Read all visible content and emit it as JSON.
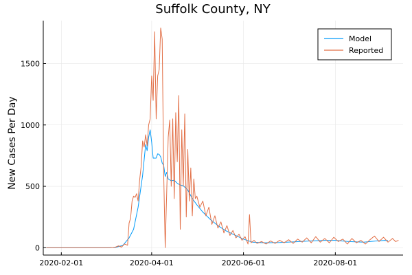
{
  "chart_data": {
    "type": "line",
    "title": "Suffolk County, NY",
    "xlabel": "",
    "ylabel": "New Cases Per Day",
    "x_ticks": [
      "2020-02-01",
      "2020-04-01",
      "2020-06-01",
      "2020-08-01"
    ],
    "y_ticks": [
      0,
      500,
      1000,
      1500
    ],
    "xlim": [
      "2020-01-20",
      "2020-09-15"
    ],
    "ylim": [
      -60,
      1850
    ],
    "grid": true,
    "legend_position": "top-right",
    "series": [
      {
        "name": "Model",
        "color": "#009af9",
        "points": [
          [
            "2020-01-22",
            0
          ],
          [
            "2020-02-15",
            0
          ],
          [
            "2020-03-01",
            0
          ],
          [
            "2020-03-08",
            2
          ],
          [
            "2020-03-13",
            20
          ],
          [
            "2020-03-17",
            80
          ],
          [
            "2020-03-20",
            150
          ],
          [
            "2020-03-23",
            330
          ],
          [
            "2020-03-26",
            590
          ],
          [
            "2020-03-28",
            840
          ],
          [
            "2020-03-29",
            790
          ],
          [
            "2020-03-30",
            900
          ],
          [
            "2020-03-31",
            960
          ],
          [
            "2020-04-01",
            860
          ],
          [
            "2020-04-02",
            730
          ],
          [
            "2020-04-04",
            730
          ],
          [
            "2020-04-05",
            765
          ],
          [
            "2020-04-06",
            760
          ],
          [
            "2020-04-07",
            740
          ],
          [
            "2020-04-08",
            690
          ],
          [
            "2020-04-09",
            670
          ],
          [
            "2020-04-10",
            580
          ],
          [
            "2020-04-11",
            615
          ],
          [
            "2020-04-12",
            560
          ],
          [
            "2020-04-14",
            545
          ],
          [
            "2020-04-16",
            550
          ],
          [
            "2020-04-18",
            525
          ],
          [
            "2020-04-20",
            510
          ],
          [
            "2020-04-22",
            505
          ],
          [
            "2020-04-25",
            470
          ],
          [
            "2020-04-28",
            400
          ],
          [
            "2020-05-01",
            350
          ],
          [
            "2020-05-05",
            290
          ],
          [
            "2020-05-10",
            230
          ],
          [
            "2020-05-15",
            180
          ],
          [
            "2020-05-20",
            140
          ],
          [
            "2020-05-25",
            110
          ],
          [
            "2020-06-01",
            70
          ],
          [
            "2020-06-07",
            45
          ],
          [
            "2020-06-15",
            40
          ],
          [
            "2020-06-25",
            42
          ],
          [
            "2020-07-05",
            48
          ],
          [
            "2020-07-15",
            55
          ],
          [
            "2020-07-25",
            60
          ],
          [
            "2020-08-01",
            60
          ],
          [
            "2020-08-10",
            50
          ],
          [
            "2020-08-20",
            45
          ],
          [
            "2020-08-28",
            55
          ],
          [
            "2020-09-03",
            60
          ],
          [
            "2020-09-05",
            58
          ]
        ]
      },
      {
        "name": "Reported",
        "color": "#e26f46",
        "points": [
          [
            "2020-01-22",
            0
          ],
          [
            "2020-02-15",
            0
          ],
          [
            "2020-03-01",
            0
          ],
          [
            "2020-03-05",
            0
          ],
          [
            "2020-03-08",
            5
          ],
          [
            "2020-03-10",
            15
          ],
          [
            "2020-03-12",
            5
          ],
          [
            "2020-03-14",
            30
          ],
          [
            "2020-03-16",
            20
          ],
          [
            "2020-03-17",
            200
          ],
          [
            "2020-03-18",
            240
          ],
          [
            "2020-03-19",
            380
          ],
          [
            "2020-03-20",
            420
          ],
          [
            "2020-03-21",
            410
          ],
          [
            "2020-03-22",
            440
          ],
          [
            "2020-03-23",
            380
          ],
          [
            "2020-03-24",
            550
          ],
          [
            "2020-03-25",
            660
          ],
          [
            "2020-03-26",
            870
          ],
          [
            "2020-03-27",
            820
          ],
          [
            "2020-03-28",
            920
          ],
          [
            "2020-03-29",
            830
          ],
          [
            "2020-03-30",
            1000
          ],
          [
            "2020-03-31",
            1050
          ],
          [
            "2020-04-01",
            1400
          ],
          [
            "2020-04-02",
            1200
          ],
          [
            "2020-04-03",
            1760
          ],
          [
            "2020-04-04",
            1050
          ],
          [
            "2020-04-05",
            1400
          ],
          [
            "2020-04-06",
            1450
          ],
          [
            "2020-04-07",
            1790
          ],
          [
            "2020-04-08",
            1700
          ],
          [
            "2020-04-09",
            600
          ],
          [
            "2020-04-10",
            0
          ],
          [
            "2020-04-11",
            450
          ],
          [
            "2020-04-12",
            900
          ],
          [
            "2020-04-13",
            1040
          ],
          [
            "2020-04-14",
            500
          ],
          [
            "2020-04-15",
            1050
          ],
          [
            "2020-04-16",
            400
          ],
          [
            "2020-04-17",
            1100
          ],
          [
            "2020-04-18",
            700
          ],
          [
            "2020-04-19",
            1240
          ],
          [
            "2020-04-20",
            150
          ],
          [
            "2020-04-21",
            960
          ],
          [
            "2020-04-22",
            500
          ],
          [
            "2020-04-23",
            1090
          ],
          [
            "2020-04-24",
            250
          ],
          [
            "2020-04-25",
            800
          ],
          [
            "2020-04-26",
            380
          ],
          [
            "2020-04-27",
            650
          ],
          [
            "2020-04-28",
            260
          ],
          [
            "2020-04-29",
            560
          ],
          [
            "2020-04-30",
            400
          ],
          [
            "2020-05-01",
            420
          ],
          [
            "2020-05-03",
            330
          ],
          [
            "2020-05-05",
            380
          ],
          [
            "2020-05-07",
            260
          ],
          [
            "2020-05-09",
            330
          ],
          [
            "2020-05-11",
            190
          ],
          [
            "2020-05-13",
            260
          ],
          [
            "2020-05-15",
            160
          ],
          [
            "2020-05-17",
            210
          ],
          [
            "2020-05-19",
            120
          ],
          [
            "2020-05-21",
            180
          ],
          [
            "2020-05-23",
            100
          ],
          [
            "2020-05-25",
            140
          ],
          [
            "2020-05-27",
            80
          ],
          [
            "2020-05-29",
            110
          ],
          [
            "2020-05-31",
            60
          ],
          [
            "2020-06-02",
            90
          ],
          [
            "2020-06-04",
            30
          ],
          [
            "2020-06-05",
            270
          ],
          [
            "2020-06-06",
            40
          ],
          [
            "2020-06-08",
            60
          ],
          [
            "2020-06-10",
            35
          ],
          [
            "2020-06-13",
            50
          ],
          [
            "2020-06-16",
            30
          ],
          [
            "2020-06-19",
            55
          ],
          [
            "2020-06-22",
            35
          ],
          [
            "2020-06-25",
            60
          ],
          [
            "2020-06-28",
            40
          ],
          [
            "2020-07-01",
            65
          ],
          [
            "2020-07-04",
            35
          ],
          [
            "2020-07-07",
            70
          ],
          [
            "2020-07-10",
            45
          ],
          [
            "2020-07-13",
            80
          ],
          [
            "2020-07-16",
            40
          ],
          [
            "2020-07-19",
            90
          ],
          [
            "2020-07-22",
            45
          ],
          [
            "2020-07-25",
            75
          ],
          [
            "2020-07-28",
            40
          ],
          [
            "2020-07-31",
            85
          ],
          [
            "2020-08-03",
            50
          ],
          [
            "2020-08-06",
            70
          ],
          [
            "2020-08-09",
            30
          ],
          [
            "2020-08-12",
            75
          ],
          [
            "2020-08-15",
            40
          ],
          [
            "2020-08-18",
            60
          ],
          [
            "2020-08-21",
            30
          ],
          [
            "2020-08-24",
            65
          ],
          [
            "2020-08-27",
            95
          ],
          [
            "2020-08-30",
            50
          ],
          [
            "2020-09-02",
            85
          ],
          [
            "2020-09-05",
            45
          ],
          [
            "2020-09-08",
            75
          ],
          [
            "2020-09-10",
            50
          ],
          [
            "2020-09-12",
            60
          ]
        ]
      }
    ]
  }
}
